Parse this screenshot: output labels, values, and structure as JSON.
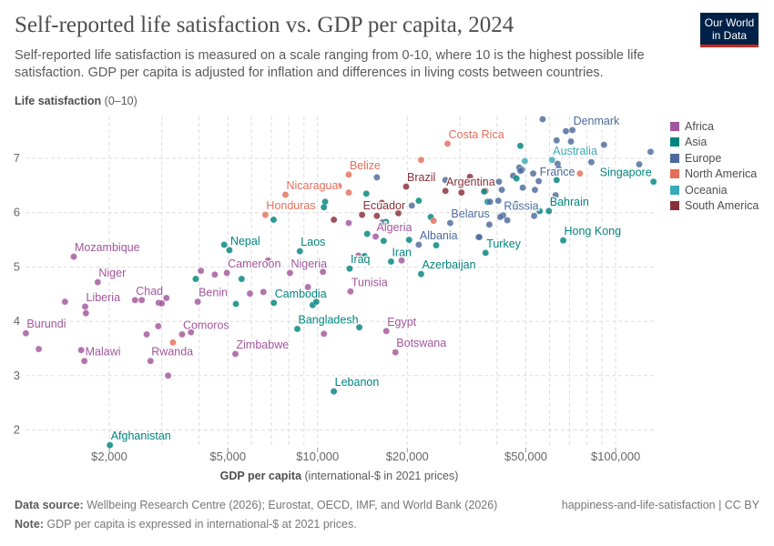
{
  "header": {
    "title": "Self-reported life satisfaction vs. GDP per capita, 2024",
    "subtitle": "Self-reported life satisfaction is measured on a scale ranging from 0-10, where 10 is the highest possible life satisfaction. GDP per capita is adjusted for inflation and differences in living costs between countries.",
    "logo": "Our World in Data"
  },
  "footer": {
    "source_label": "Data source:",
    "source": "Wellbeing Research Centre (2026); Eurostat, OECD, IMF, and World Bank (2026)",
    "note_label": "Note:",
    "note": "GDP per capita is expressed in international-$ at 2021 prices.",
    "slug": "happiness-and-life-satisfaction | CC BY"
  },
  "chart_data": {
    "type": "scatter",
    "title": "Self-reported life satisfaction vs. GDP per capita, 2024",
    "ylabel_bold": "Life satisfaction",
    "ylabel_rest": "(0–10)",
    "xlabel_bold": "GDP per capita",
    "xlabel_rest": "(international-$ in 2021 prices)",
    "x_scale": "log",
    "xlim": [
      1000,
      135000
    ],
    "ylim": [
      1.6,
      7.8
    ],
    "grid": true,
    "legend_placement": "right",
    "x_ticks": [
      {
        "v": 2000,
        "label": "$2,000"
      },
      {
        "v": 5000,
        "label": "$5,000"
      },
      {
        "v": 10000,
        "label": "$10,000"
      },
      {
        "v": 20000,
        "label": "$20,000"
      },
      {
        "v": 50000,
        "label": "$50,000"
      },
      {
        "v": 100000,
        "label": "$100,000"
      }
    ],
    "y_ticks": [
      {
        "v": 2,
        "label": "2"
      },
      {
        "v": 3,
        "label": "3"
      },
      {
        "v": 4,
        "label": "4"
      },
      {
        "v": 5,
        "label": "5"
      },
      {
        "v": 6,
        "label": "6"
      },
      {
        "v": 7,
        "label": "7"
      }
    ],
    "regions": [
      {
        "name": "Africa",
        "color": "#a2559c"
      },
      {
        "name": "Asia",
        "color": "#00847e"
      },
      {
        "name": "Europe",
        "color": "#4c6a9c"
      },
      {
        "name": "North America",
        "color": "#e56e5a"
      },
      {
        "name": "Oceania",
        "color": "#38aaba"
      },
      {
        "name": "South America",
        "color": "#883039"
      }
    ],
    "points": [
      {
        "r": "Africa",
        "x": 1520,
        "y": 5.19,
        "label": "Mozambique"
      },
      {
        "r": "Africa",
        "x": 1830,
        "y": 4.72,
        "label": "Niger"
      },
      {
        "r": "Africa",
        "x": 1420,
        "y": 4.36
      },
      {
        "r": "Africa",
        "x": 1660,
        "y": 4.27,
        "label": "Liberia"
      },
      {
        "r": "Africa",
        "x": 1670,
        "y": 4.15
      },
      {
        "r": "Africa",
        "x": 1050,
        "y": 3.78,
        "label": "Burundi"
      },
      {
        "r": "Africa",
        "x": 1160,
        "y": 3.49
      },
      {
        "r": "Africa",
        "x": 1610,
        "y": 3.47
      },
      {
        "r": "Africa",
        "x": 1650,
        "y": 3.27,
        "label": "Malawi"
      },
      {
        "r": "Africa",
        "x": 2440,
        "y": 4.39,
        "label": "Chad"
      },
      {
        "r": "Africa",
        "x": 2570,
        "y": 4.39
      },
      {
        "r": "Africa",
        "x": 2930,
        "y": 4.34
      },
      {
        "r": "Africa",
        "x": 3000,
        "y": 4.33
      },
      {
        "r": "Africa",
        "x": 3110,
        "y": 4.43
      },
      {
        "r": "Africa",
        "x": 2920,
        "y": 3.91
      },
      {
        "r": "Africa",
        "x": 2670,
        "y": 3.76
      },
      {
        "r": "Africa",
        "x": 2750,
        "y": 3.27,
        "label": "Rwanda"
      },
      {
        "r": "Africa",
        "x": 3150,
        "y": 3.0
      },
      {
        "r": "North America",
        "x": 3270,
        "y": 3.61
      },
      {
        "r": "Africa",
        "x": 3510,
        "y": 3.76,
        "label": "Comoros"
      },
      {
        "r": "Africa",
        "x": 3760,
        "y": 3.8
      },
      {
        "r": "Africa",
        "x": 3960,
        "y": 4.36,
        "label": "Benin"
      },
      {
        "r": "Asia",
        "x": 3900,
        "y": 4.78
      },
      {
        "r": "Africa",
        "x": 4060,
        "y": 4.93
      },
      {
        "r": "Africa",
        "x": 4520,
        "y": 4.86
      },
      {
        "r": "Africa",
        "x": 4960,
        "y": 4.89,
        "label": "Cameroon"
      },
      {
        "r": "Asia",
        "x": 4860,
        "y": 5.41
      },
      {
        "r": "Asia",
        "x": 5060,
        "y": 5.31,
        "label": "Nepal"
      },
      {
        "r": "Asia",
        "x": 5560,
        "y": 4.78
      },
      {
        "r": "Asia",
        "x": 5320,
        "y": 4.32
      },
      {
        "r": "Africa",
        "x": 5930,
        "y": 4.51
      },
      {
        "r": "Africa",
        "x": 6580,
        "y": 4.54
      },
      {
        "r": "Africa",
        "x": 6820,
        "y": 5.12
      },
      {
        "r": "Asia",
        "x": 7130,
        "y": 4.34,
        "label": "Cambodia"
      },
      {
        "r": "Africa",
        "x": 5300,
        "y": 3.4,
        "label": "Zimbabwe"
      },
      {
        "r": "Africa",
        "x": 8080,
        "y": 4.89,
        "label": "Nigeria"
      },
      {
        "r": "Africa",
        "x": 9280,
        "y": 4.63
      },
      {
        "r": "Asia",
        "x": 8720,
        "y": 5.29,
        "label": "Laos"
      },
      {
        "r": "Africa",
        "x": 10420,
        "y": 4.91
      },
      {
        "r": "Asia",
        "x": 9630,
        "y": 4.3
      },
      {
        "r": "Asia",
        "x": 9900,
        "y": 4.36
      },
      {
        "r": "Asia",
        "x": 8550,
        "y": 3.86,
        "label": "Bangladesh"
      },
      {
        "r": "Africa",
        "x": 10500,
        "y": 3.77
      },
      {
        "r": "Asia",
        "x": 2010,
        "y": 1.72,
        "label": "Afghanistan"
      },
      {
        "r": "North America",
        "x": 27300,
        "y": 7.27,
        "label": "Costa Rica"
      },
      {
        "r": "North America",
        "x": 22250,
        "y": 6.97
      },
      {
        "r": "North America",
        "x": 12720,
        "y": 6.7,
        "label": "Belize"
      },
      {
        "r": "Europe",
        "x": 15810,
        "y": 6.65
      },
      {
        "r": "South America",
        "x": 19820,
        "y": 6.48,
        "label": "Brazil"
      },
      {
        "r": "Europe",
        "x": 26850,
        "y": 6.6
      },
      {
        "r": "South America",
        "x": 32450,
        "y": 6.66
      },
      {
        "r": "South America",
        "x": 26850,
        "y": 6.4,
        "label": "Argentina"
      },
      {
        "r": "South America",
        "x": 30400,
        "y": 6.37
      },
      {
        "r": "North America",
        "x": 11780,
        "y": 6.49
      },
      {
        "r": "North America",
        "x": 7800,
        "y": 6.33,
        "label": "Nicaragua"
      },
      {
        "r": "North America",
        "x": 12720,
        "y": 6.37
      },
      {
        "r": "Asia",
        "x": 14570,
        "y": 6.35
      },
      {
        "r": "Asia",
        "x": 10600,
        "y": 6.2
      },
      {
        "r": "Asia",
        "x": 10500,
        "y": 6.1
      },
      {
        "r": "North America",
        "x": 6680,
        "y": 5.96,
        "label": "Honduras"
      },
      {
        "r": "Asia",
        "x": 7120,
        "y": 5.87
      },
      {
        "r": "South America",
        "x": 11340,
        "y": 5.87
      },
      {
        "r": "Africa",
        "x": 12720,
        "y": 5.81
      },
      {
        "r": "South America",
        "x": 14100,
        "y": 5.96,
        "label": "Ecuador"
      },
      {
        "r": "South America",
        "x": 15810,
        "y": 5.94
      },
      {
        "r": "South America",
        "x": 16430,
        "y": 6.18
      },
      {
        "r": "South America",
        "x": 18660,
        "y": 5.99
      },
      {
        "r": "Europe",
        "x": 20710,
        "y": 6.13
      },
      {
        "r": "Asia",
        "x": 21850,
        "y": 6.22
      },
      {
        "r": "Asia",
        "x": 23970,
        "y": 5.92
      },
      {
        "r": "North America",
        "x": 24500,
        "y": 5.85
      },
      {
        "r": "Europe",
        "x": 27860,
        "y": 5.81,
        "label": "Belarus"
      },
      {
        "r": "Asia",
        "x": 16950,
        "y": 5.83
      },
      {
        "r": "Europe",
        "x": 16480,
        "y": 5.82
      },
      {
        "r": "Africa",
        "x": 15660,
        "y": 5.56,
        "label": "Algeria"
      },
      {
        "r": "Asia",
        "x": 14670,
        "y": 5.61
      },
      {
        "r": "Asia",
        "x": 16660,
        "y": 5.48
      },
      {
        "r": "Asia",
        "x": 20280,
        "y": 5.5
      },
      {
        "r": "Europe",
        "x": 21850,
        "y": 5.41,
        "label": "Albania"
      },
      {
        "r": "Asia",
        "x": 25000,
        "y": 5.4
      },
      {
        "r": "Europe",
        "x": 34660,
        "y": 5.55
      },
      {
        "r": "Asia",
        "x": 17640,
        "y": 5.1,
        "label": "Iran"
      },
      {
        "r": "Africa",
        "x": 19140,
        "y": 5.12
      },
      {
        "r": "Asia",
        "x": 12810,
        "y": 4.97,
        "label": "Iraq"
      },
      {
        "r": "Africa",
        "x": 13700,
        "y": 5.21
      },
      {
        "r": "Asia",
        "x": 14380,
        "y": 5.2
      },
      {
        "r": "Asia",
        "x": 22250,
        "y": 4.87,
        "label": "Azerbaijan"
      },
      {
        "r": "Africa",
        "x": 12890,
        "y": 4.55,
        "label": "Tunisia"
      },
      {
        "r": "Asia",
        "x": 13800,
        "y": 3.89
      },
      {
        "r": "Africa",
        "x": 17000,
        "y": 3.82,
        "label": "Egypt"
      },
      {
        "r": "Africa",
        "x": 18250,
        "y": 3.43,
        "label": "Botswana"
      },
      {
        "r": "Asia",
        "x": 11340,
        "y": 2.71,
        "label": "Lebanon"
      },
      {
        "r": "Europe",
        "x": 56900,
        "y": 7.72
      },
      {
        "r": "Europe",
        "x": 68100,
        "y": 7.5
      },
      {
        "r": "Europe",
        "x": 71600,
        "y": 7.52,
        "label": "Denmark"
      },
      {
        "r": "Europe",
        "x": 63400,
        "y": 7.33
      },
      {
        "r": "Europe",
        "x": 70800,
        "y": 7.31
      },
      {
        "r": "Europe",
        "x": 91400,
        "y": 7.25
      },
      {
        "r": "Asia",
        "x": 47900,
        "y": 7.23
      },
      {
        "r": "Europe",
        "x": 131000,
        "y": 7.12
      },
      {
        "r": "Oceania",
        "x": 61200,
        "y": 6.97,
        "label": "Australia"
      },
      {
        "r": "Oceania",
        "x": 49600,
        "y": 6.95
      },
      {
        "r": "Europe",
        "x": 63900,
        "y": 6.9
      },
      {
        "r": "Europe",
        "x": 82900,
        "y": 6.93
      },
      {
        "r": "Europe",
        "x": 120000,
        "y": 6.89
      },
      {
        "r": "Europe",
        "x": 64400,
        "y": 6.81
      },
      {
        "r": "Europe",
        "x": 47500,
        "y": 6.83
      },
      {
        "r": "Europe",
        "x": 48500,
        "y": 6.79
      },
      {
        "r": "Europe",
        "x": 47900,
        "y": 6.77
      },
      {
        "r": "Europe",
        "x": 45300,
        "y": 6.68
      },
      {
        "r": "Asia",
        "x": 46500,
        "y": 6.63
      },
      {
        "r": "Europe",
        "x": 52900,
        "y": 6.72
      },
      {
        "r": "Europe",
        "x": 55200,
        "y": 6.58,
        "label": "France"
      },
      {
        "r": "North America",
        "x": 75900,
        "y": 6.72
      },
      {
        "r": "Asia",
        "x": 63400,
        "y": 6.6
      },
      {
        "r": "Asia",
        "x": 134000,
        "y": 6.57,
        "label": "Singapore",
        "anchor": "end"
      },
      {
        "r": "Europe",
        "x": 40600,
        "y": 6.57
      },
      {
        "r": "Europe",
        "x": 41500,
        "y": 6.42
      },
      {
        "r": "Europe",
        "x": 48800,
        "y": 6.46
      },
      {
        "r": "Europe",
        "x": 53600,
        "y": 6.42
      },
      {
        "r": "North America",
        "x": 36600,
        "y": 6.4
      },
      {
        "r": "Asia",
        "x": 36200,
        "y": 6.39
      },
      {
        "r": "Asia",
        "x": 37200,
        "y": 6.2
      },
      {
        "r": "Europe",
        "x": 37900,
        "y": 6.2
      },
      {
        "r": "Europe",
        "x": 40400,
        "y": 6.22
      },
      {
        "r": "Asia",
        "x": 46300,
        "y": 6.16
      },
      {
        "r": "Europe",
        "x": 62900,
        "y": 6.32
      },
      {
        "r": "Europe",
        "x": 41900,
        "y": 5.95,
        "label": "Russia"
      },
      {
        "r": "Europe",
        "x": 41000,
        "y": 5.92
      },
      {
        "r": "Europe",
        "x": 43300,
        "y": 5.86
      },
      {
        "r": "Asia",
        "x": 55600,
        "y": 6.03
      },
      {
        "r": "Asia",
        "x": 59700,
        "y": 6.03,
        "label": "Bahrain"
      },
      {
        "r": "Europe",
        "x": 53300,
        "y": 5.94
      },
      {
        "r": "Europe",
        "x": 37700,
        "y": 5.78
      },
      {
        "r": "Europe",
        "x": 34900,
        "y": 5.55
      },
      {
        "r": "Asia",
        "x": 66700,
        "y": 5.49,
        "label": "Hong Kong"
      },
      {
        "r": "Asia",
        "x": 36600,
        "y": 5.26,
        "label": "Turkey"
      }
    ]
  }
}
